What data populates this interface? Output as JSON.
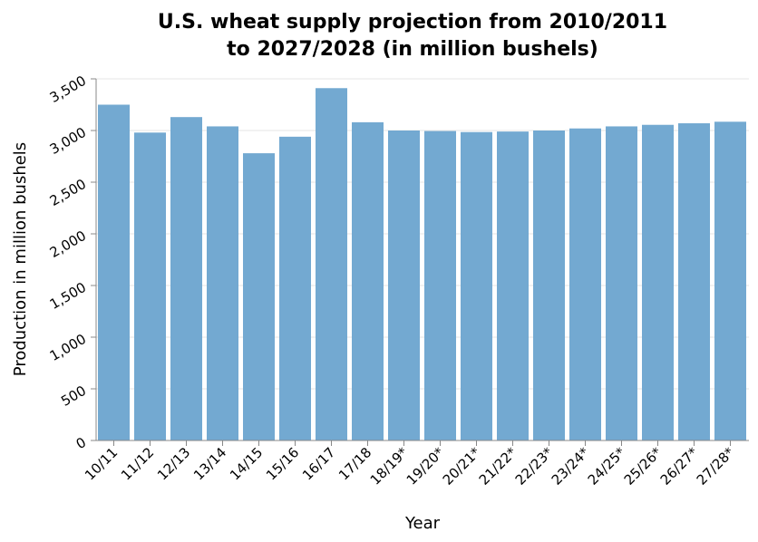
{
  "chart_data": {
    "type": "bar",
    "title_line1": "U.S. wheat supply projection from 2010/2011",
    "title_line2": "to 2027/2028 (in million bushels)",
    "xlabel": "Year",
    "ylabel": "Production in million bushels",
    "categories": [
      "10/11",
      "11/12",
      "12/13",
      "13/14",
      "14/15",
      "15/16",
      "16/17",
      "17/18",
      "18/19*",
      "19/20*",
      "20/21*",
      "21/22*",
      "22/23*",
      "23/24*",
      "24/25*",
      "25/26*",
      "26/27*",
      "27/28*"
    ],
    "values": [
      3250,
      2980,
      3130,
      3040,
      2780,
      2940,
      3410,
      3080,
      3000,
      2995,
      2985,
      2990,
      3000,
      3020,
      3040,
      3055,
      3070,
      3085
    ],
    "ylim": [
      0,
      3500
    ],
    "yticks": [
      0,
      500,
      1000,
      1500,
      2000,
      2500,
      3000,
      3500
    ],
    "ytick_labels": [
      "0",
      "500",
      "1,000",
      "1,500",
      "2,000",
      "2,500",
      "3,000",
      "3,500"
    ],
    "bar_color": "#73a9d1",
    "grid": true
  }
}
